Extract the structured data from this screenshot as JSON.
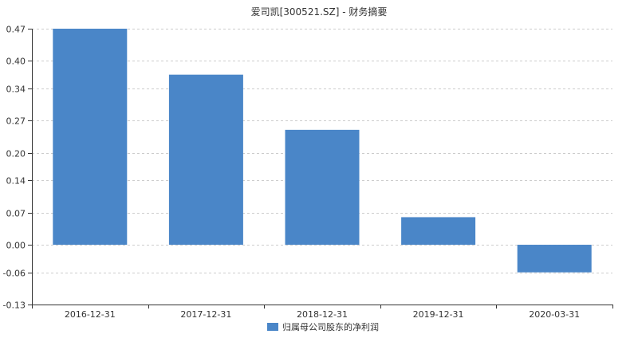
{
  "chart_data": {
    "type": "bar",
    "title": "爱司凯[300521.SZ] - 财务摘要",
    "categories": [
      "2016-12-31",
      "2017-12-31",
      "2018-12-31",
      "2019-12-31",
      "2020-03-31"
    ],
    "series": [
      {
        "name": "归属母公司股东的净利润",
        "values": [
          0.47,
          0.37,
          0.25,
          0.06,
          -0.06
        ]
      }
    ],
    "yticks": [
      "0.47",
      "0.40",
      "0.34",
      "0.27",
      "0.20",
      "0.14",
      "0.07",
      "0.00",
      "-0.06",
      "-0.13"
    ],
    "ylim": [
      -0.13,
      0.47
    ],
    "grid": true,
    "legend_position": "bottom",
    "colors": {
      "bar": "#4a86c8",
      "grid": "#cccccc",
      "axis": "#333333",
      "text": "#333333"
    }
  }
}
